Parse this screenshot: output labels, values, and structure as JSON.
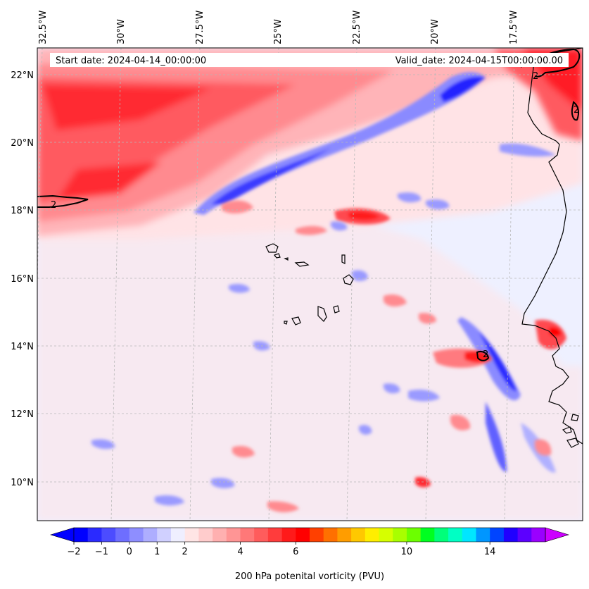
{
  "header": {
    "start_date": "Start date: 2024-04-14_00:00:00",
    "valid_date": "Valid_date: 2024-04-15T00:00:00.00"
  },
  "map": {
    "lon_labels": [
      "32.5°W",
      "30°W",
      "27.5°W",
      "25°W",
      "22.5°W",
      "20°W",
      "17.5°W"
    ],
    "lat_labels": [
      "22°N",
      "20°N",
      "18°N",
      "16°N",
      "14°N",
      "12°N",
      "10°N"
    ],
    "contour_labels": [
      "2",
      "2",
      "2",
      "2"
    ],
    "colors": {
      "background": "#eef0ff",
      "land_fill": "#ffffff",
      "coastline": "#000000",
      "gridline": "#b0b0b0"
    }
  },
  "colorbar": {
    "title": "200 hPa potenital vorticity (PVU)",
    "tick_labels": [
      "−2",
      "−1",
      "0",
      "1",
      "2",
      "4",
      "6",
      "10",
      "14"
    ],
    "colors": [
      "#0000ff",
      "#2a2aff",
      "#4c4cff",
      "#6e6eff",
      "#8e8eff",
      "#aeaeff",
      "#d0d0ff",
      "#efefff",
      "#ffe5e5",
      "#ffcccc",
      "#ffb0b0",
      "#ff9595",
      "#ff7878",
      "#ff5c5c",
      "#ff3c3c",
      "#ff1a1a",
      "#ff0000",
      "#ff4000",
      "#ff7000",
      "#ff9d00",
      "#ffc800",
      "#ffee00",
      "#d6ff00",
      "#a8ff00",
      "#6cff00",
      "#00ff20",
      "#00ff7a",
      "#00ffc4",
      "#00e6ff",
      "#0096ff",
      "#0044ff",
      "#2000ff",
      "#5c00ff",
      "#9a00ff"
    ],
    "under_color": "#0000ff",
    "over_color": "#cc00ff"
  }
}
